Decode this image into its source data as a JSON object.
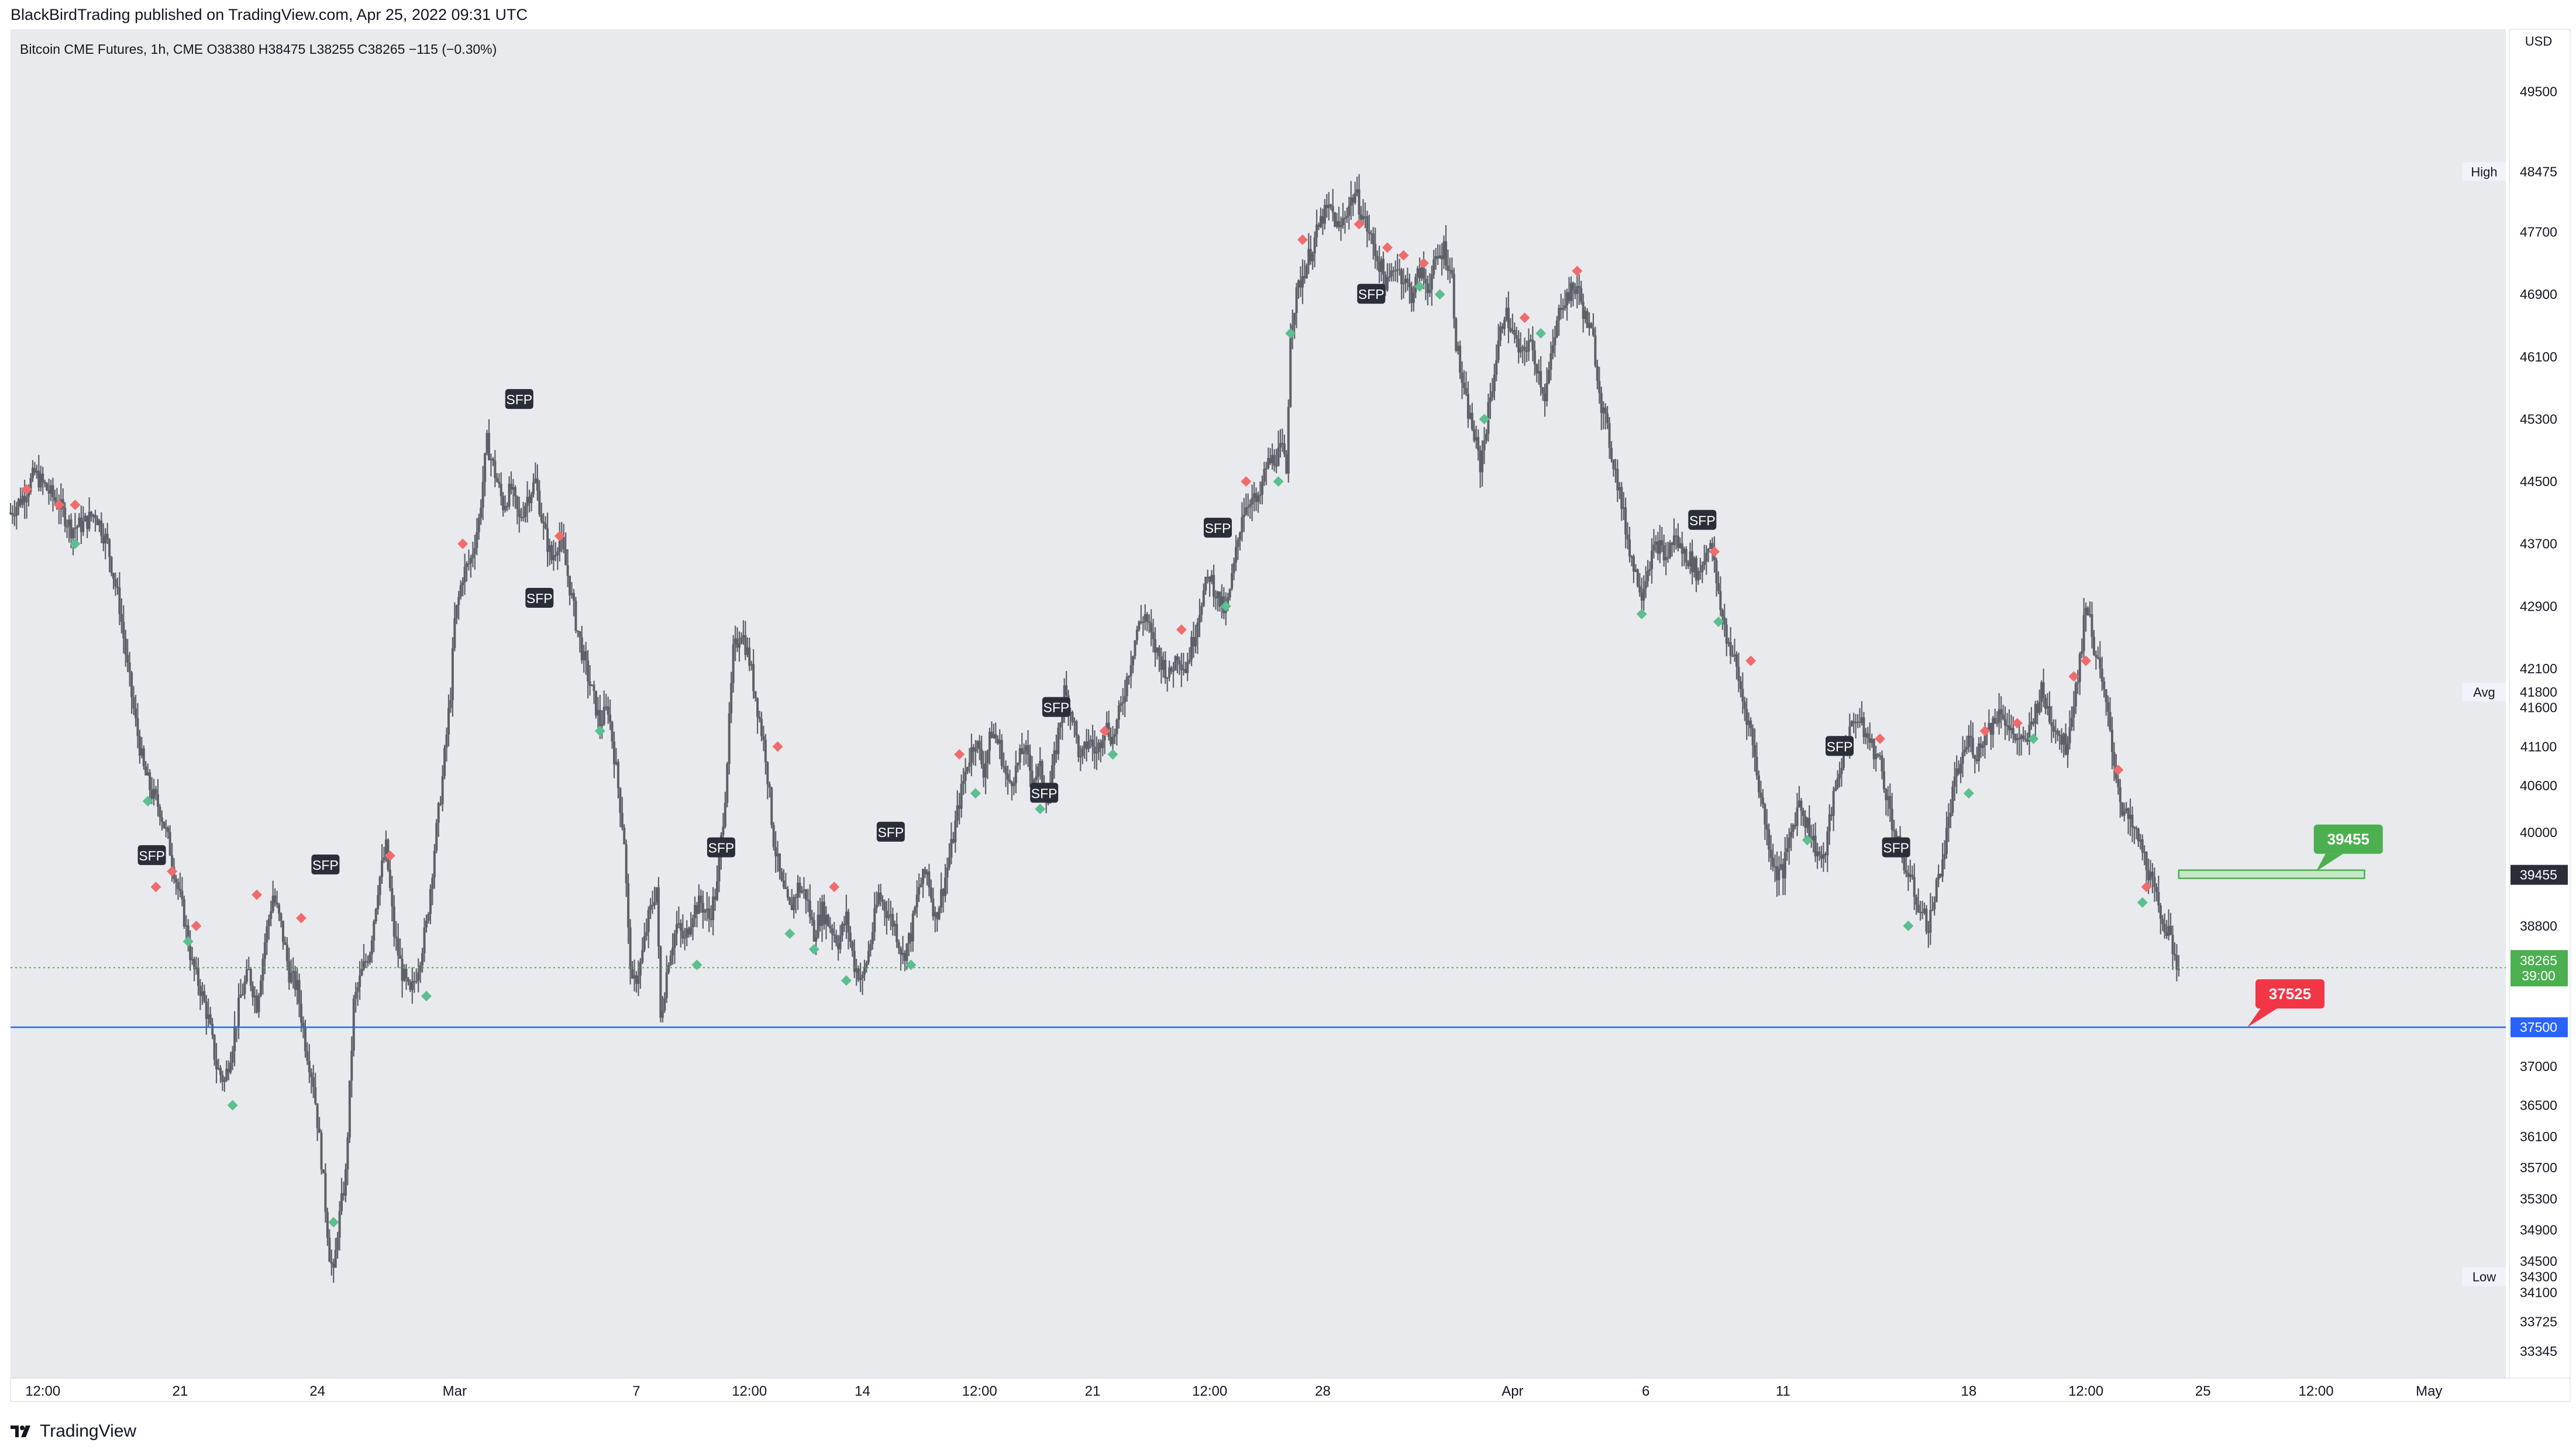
{
  "header": {
    "publisher": "BlackBirdTrading published on TradingView.com, Apr 25, 2022 09:31 UTC"
  },
  "footer": {
    "brand": "TradingView",
    "logo_icon": "tradingview-logo-icon"
  },
  "colors": {
    "chart_bg": "#e9eaee",
    "axis_bg": "#ffffff",
    "candle": "#5d6068",
    "sfp_label_bg": "#2a2e39",
    "sell_diamond": "#f06c6c",
    "buy_diamond": "#5bbf8f",
    "green_label": "#4caf50",
    "red_label": "#f23645",
    "blue_line": "#2962ff"
  },
  "chart_data": {
    "type": "candlestick",
    "legend": "Bitcoin CME Futures, 1h, CME  O38380  H38475  L38255  C38265  −115 (−0.30%)",
    "ohlc": {
      "open": 38380,
      "high": 38475,
      "low": 38255,
      "close": 38265,
      "change": -115,
      "change_pct": -0.3
    },
    "price_scale_unit": "USD",
    "y_ticks": [
      49500,
      48475,
      47700,
      46900,
      46100,
      45300,
      44500,
      43700,
      42900,
      42100,
      41800,
      41600,
      41100,
      40600,
      40000,
      39455,
      38800,
      37500,
      37000,
      36500,
      36100,
      35700,
      35300,
      34900,
      34500,
      34300,
      34100,
      33725,
      33345
    ],
    "ylim": [
      33000,
      50300
    ],
    "x_ticks": [
      "12:00",
      "21",
      "24",
      "Mar",
      "7",
      "12:00",
      "14",
      "12:00",
      "21",
      "12:00",
      "28",
      "Apr",
      "6",
      "11",
      "18",
      "12:00",
      "25",
      "12:00",
      "May"
    ],
    "x_tick_index": [
      8,
      42,
      76,
      110,
      155,
      183,
      211,
      240,
      268,
      297,
      325,
      372,
      405,
      439,
      485,
      514,
      543,
      571,
      599
    ],
    "x_range": [
      0,
      618
    ],
    "price_path": [
      [
        0,
        44100
      ],
      [
        3,
        44300
      ],
      [
        6,
        44600
      ],
      [
        9,
        44400
      ],
      [
        12,
        44200
      ],
      [
        15,
        43900
      ],
      [
        18,
        43950
      ],
      [
        21,
        44100
      ],
      [
        24,
        43700
      ],
      [
        27,
        42900
      ],
      [
        29,
        42100
      ],
      [
        31,
        41400
      ],
      [
        33,
        40800
      ],
      [
        35,
        40500
      ],
      [
        37,
        40300
      ],
      [
        39,
        39900
      ],
      [
        41,
        39400
      ],
      [
        43,
        38900
      ],
      [
        45,
        38300
      ],
      [
        47,
        38000
      ],
      [
        49,
        37600
      ],
      [
        51,
        37000
      ],
      [
        53,
        36800
      ],
      [
        55,
        37300
      ],
      [
        57,
        37900
      ],
      [
        59,
        38200
      ],
      [
        61,
        37800
      ],
      [
        63,
        38600
      ],
      [
        65,
        39200
      ],
      [
        67,
        38800
      ],
      [
        69,
        38200
      ],
      [
        71,
        38000
      ],
      [
        73,
        37300
      ],
      [
        75,
        36800
      ],
      [
        77,
        35800
      ],
      [
        78,
        35200
      ],
      [
        79,
        34600
      ],
      [
        80,
        34300
      ],
      [
        81,
        34900
      ],
      [
        83,
        35600
      ],
      [
        85,
        37800
      ],
      [
        87,
        38200
      ],
      [
        89,
        38500
      ],
      [
        91,
        39300
      ],
      [
        93,
        39800
      ],
      [
        95,
        38700
      ],
      [
        97,
        38200
      ],
      [
        99,
        37900
      ],
      [
        101,
        38300
      ],
      [
        103,
        38800
      ],
      [
        105,
        39800
      ],
      [
        107,
        40700
      ],
      [
        109,
        41800
      ],
      [
        110,
        42700
      ],
      [
        112,
        43300
      ],
      [
        114,
        43500
      ],
      [
        116,
        44000
      ],
      [
        118,
        45000
      ],
      [
        120,
        44600
      ],
      [
        122,
        44200
      ],
      [
        124,
        44400
      ],
      [
        126,
        44000
      ],
      [
        128,
        44300
      ],
      [
        130,
        44500
      ],
      [
        132,
        43900
      ],
      [
        134,
        43500
      ],
      [
        136,
        43800
      ],
      [
        138,
        43300
      ],
      [
        140,
        42700
      ],
      [
        142,
        42200
      ],
      [
        144,
        41800
      ],
      [
        146,
        41400
      ],
      [
        148,
        41600
      ],
      [
        150,
        40800
      ],
      [
        152,
        39900
      ],
      [
        153,
        38700
      ],
      [
        154,
        38000
      ],
      [
        156,
        38300
      ],
      [
        158,
        38900
      ],
      [
        160,
        39300
      ],
      [
        161,
        37600
      ],
      [
        163,
        38400
      ],
      [
        165,
        38800
      ],
      [
        167,
        38600
      ],
      [
        169,
        39000
      ],
      [
        171,
        39100
      ],
      [
        173,
        38900
      ],
      [
        175,
        39300
      ],
      [
        177,
        40500
      ],
      [
        179,
        42300
      ],
      [
        181,
        42600
      ],
      [
        183,
        42200
      ],
      [
        185,
        41600
      ],
      [
        187,
        41000
      ],
      [
        189,
        39900
      ],
      [
        191,
        39300
      ],
      [
        193,
        39000
      ],
      [
        195,
        39300
      ],
      [
        197,
        39200
      ],
      [
        199,
        38700
      ],
      [
        201,
        39000
      ],
      [
        203,
        38800
      ],
      [
        205,
        38600
      ],
      [
        207,
        38900
      ],
      [
        209,
        38300
      ],
      [
        211,
        38100
      ],
      [
        213,
        38600
      ],
      [
        215,
        39200
      ],
      [
        217,
        39000
      ],
      [
        219,
        38800
      ],
      [
        221,
        38400
      ],
      [
        223,
        38700
      ],
      [
        225,
        39300
      ],
      [
        227,
        39500
      ],
      [
        229,
        38900
      ],
      [
        231,
        39300
      ],
      [
        233,
        39800
      ],
      [
        235,
        40400
      ],
      [
        237,
        40900
      ],
      [
        239,
        41200
      ],
      [
        241,
        40800
      ],
      [
        243,
        41300
      ],
      [
        245,
        41100
      ],
      [
        247,
        40600
      ],
      [
        249,
        40800
      ],
      [
        251,
        41100
      ],
      [
        253,
        40700
      ],
      [
        255,
        40800
      ],
      [
        257,
        40400
      ],
      [
        259,
        41100
      ],
      [
        261,
        41800
      ],
      [
        263,
        41500
      ],
      [
        265,
        40900
      ],
      [
        267,
        41200
      ],
      [
        269,
        41000
      ],
      [
        271,
        41400
      ],
      [
        273,
        41200
      ],
      [
        275,
        41600
      ],
      [
        277,
        42100
      ],
      [
        279,
        42600
      ],
      [
        281,
        42800
      ],
      [
        283,
        42400
      ],
      [
        285,
        42200
      ],
      [
        287,
        42000
      ],
      [
        289,
        42300
      ],
      [
        291,
        42100
      ],
      [
        293,
        42500
      ],
      [
        295,
        43000
      ],
      [
        297,
        43300
      ],
      [
        299,
        43000
      ],
      [
        301,
        42800
      ],
      [
        303,
        43400
      ],
      [
        305,
        44100
      ],
      [
        307,
        44300
      ],
      [
        309,
        44200
      ],
      [
        311,
        44700
      ],
      [
        313,
        44800
      ],
      [
        315,
        44900
      ],
      [
        316,
        44600
      ],
      [
        317,
        46500
      ],
      [
        319,
        47000
      ],
      [
        321,
        47300
      ],
      [
        323,
        47600
      ],
      [
        325,
        47900
      ],
      [
        327,
        48000
      ],
      [
        329,
        47700
      ],
      [
        331,
        48000
      ],
      [
        333,
        48200
      ],
      [
        335,
        47900
      ],
      [
        337,
        47600
      ],
      [
        339,
        47300
      ],
      [
        341,
        47000
      ],
      [
        343,
        47300
      ],
      [
        345,
        47100
      ],
      [
        347,
        46900
      ],
      [
        349,
        47200
      ],
      [
        351,
        47000
      ],
      [
        353,
        47300
      ],
      [
        355,
        47500
      ],
      [
        357,
        47100
      ],
      [
        358,
        46300
      ],
      [
        360,
        45600
      ],
      [
        362,
        45200
      ],
      [
        364,
        44700
      ],
      [
        366,
        45400
      ],
      [
        368,
        46100
      ],
      [
        370,
        46700
      ],
      [
        372,
        46400
      ],
      [
        374,
        46100
      ],
      [
        376,
        46300
      ],
      [
        378,
        46000
      ],
      [
        380,
        45600
      ],
      [
        382,
        46200
      ],
      [
        384,
        46800
      ],
      [
        386,
        46900
      ],
      [
        388,
        47000
      ],
      [
        390,
        46600
      ],
      [
        392,
        46300
      ],
      [
        394,
        45500
      ],
      [
        396,
        45000
      ],
      [
        398,
        44500
      ],
      [
        400,
        43900
      ],
      [
        402,
        43400
      ],
      [
        404,
        43100
      ],
      [
        406,
        43500
      ],
      [
        408,
        43700
      ],
      [
        410,
        43500
      ],
      [
        412,
        43800
      ],
      [
        414,
        43600
      ],
      [
        416,
        43500
      ],
      [
        418,
        43300
      ],
      [
        420,
        43600
      ],
      [
        421,
        43800
      ],
      [
        423,
        43000
      ],
      [
        425,
        42500
      ],
      [
        427,
        42200
      ],
      [
        429,
        41700
      ],
      [
        431,
        41300
      ],
      [
        433,
        40600
      ],
      [
        435,
        40000
      ],
      [
        437,
        39500
      ],
      [
        439,
        39500
      ],
      [
        441,
        40000
      ],
      [
        443,
        40400
      ],
      [
        445,
        40100
      ],
      [
        447,
        39800
      ],
      [
        449,
        39600
      ],
      [
        451,
        40300
      ],
      [
        453,
        40800
      ],
      [
        455,
        41200
      ],
      [
        457,
        41500
      ],
      [
        459,
        41300
      ],
      [
        461,
        41100
      ],
      [
        463,
        40900
      ],
      [
        465,
        40400
      ],
      [
        467,
        39900
      ],
      [
        469,
        39600
      ],
      [
        471,
        39300
      ],
      [
        473,
        39000
      ],
      [
        475,
        38800
      ],
      [
        477,
        39300
      ],
      [
        479,
        39800
      ],
      [
        481,
        40500
      ],
      [
        483,
        40900
      ],
      [
        485,
        41200
      ],
      [
        487,
        41000
      ],
      [
        489,
        41300
      ],
      [
        491,
        41400
      ],
      [
        493,
        41600
      ],
      [
        495,
        41300
      ],
      [
        497,
        41200
      ],
      [
        499,
        41100
      ],
      [
        501,
        41500
      ],
      [
        503,
        41800
      ],
      [
        505,
        41500
      ],
      [
        507,
        41300
      ],
      [
        509,
        41100
      ],
      [
        511,
        41700
      ],
      [
        513,
        42400
      ],
      [
        514,
        43000
      ],
      [
        516,
        42400
      ],
      [
        518,
        41900
      ],
      [
        520,
        41300
      ],
      [
        521,
        40900
      ],
      [
        523,
        40300
      ],
      [
        525,
        40100
      ],
      [
        527,
        39900
      ],
      [
        529,
        39600
      ],
      [
        531,
        39200
      ],
      [
        533,
        38900
      ],
      [
        535,
        38600
      ],
      [
        537,
        38265
      ]
    ],
    "sfp_labels": [
      {
        "text": "SFP",
        "i": 35,
        "price": 39700
      },
      {
        "text": "SFP",
        "i": 78,
        "price": 39580
      },
      {
        "text": "SFP",
        "i": 126,
        "price": 45550
      },
      {
        "text": "SFP",
        "i": 131,
        "price": 43000
      },
      {
        "text": "SFP",
        "i": 176,
        "price": 39800
      },
      {
        "text": "SFP",
        "i": 218,
        "price": 40000
      },
      {
        "text": "SFP",
        "i": 259,
        "price": 41600
      },
      {
        "text": "SFP",
        "i": 256,
        "price": 40500
      },
      {
        "text": "SFP",
        "i": 299,
        "price": 43900
      },
      {
        "text": "SFP",
        "i": 337,
        "price": 46900
      },
      {
        "text": "SFP",
        "i": 419,
        "price": 44000
      },
      {
        "text": "SFP",
        "i": 453,
        "price": 41100
      },
      {
        "text": "SFP",
        "i": 467,
        "price": 39800
      }
    ],
    "sell_signals": [
      [
        4,
        44400
      ],
      [
        12,
        44200
      ],
      [
        16,
        44200
      ],
      [
        36,
        39300
      ],
      [
        40,
        39500
      ],
      [
        46,
        38800
      ],
      [
        61,
        39200
      ],
      [
        72,
        38900
      ],
      [
        94,
        39700
      ],
      [
        112,
        43700
      ],
      [
        136,
        43800
      ],
      [
        190,
        41100
      ],
      [
        204,
        39300
      ],
      [
        235,
        41000
      ],
      [
        271,
        41300
      ],
      [
        290,
        42600
      ],
      [
        306,
        44500
      ],
      [
        320,
        47600
      ],
      [
        334,
        47800
      ],
      [
        341,
        47500
      ],
      [
        345,
        47400
      ],
      [
        350,
        47300
      ],
      [
        375,
        46600
      ],
      [
        388,
        47200
      ],
      [
        422,
        43600
      ],
      [
        431,
        42200
      ],
      [
        463,
        41200
      ],
      [
        489,
        41300
      ],
      [
        497,
        41400
      ],
      [
        511,
        42000
      ],
      [
        514,
        42200
      ],
      [
        522,
        40800
      ],
      [
        529,
        39300
      ]
    ],
    "buy_signals": [
      [
        16,
        43700
      ],
      [
        34,
        40400
      ],
      [
        44,
        38600
      ],
      [
        55,
        36500
      ],
      [
        80,
        35000
      ],
      [
        103,
        37900
      ],
      [
        146,
        41300
      ],
      [
        170,
        38300
      ],
      [
        193,
        38700
      ],
      [
        199,
        38500
      ],
      [
        207,
        38100
      ],
      [
        223,
        38300
      ],
      [
        239,
        40500
      ],
      [
        255,
        40300
      ],
      [
        273,
        41000
      ],
      [
        301,
        42900
      ],
      [
        314,
        44500
      ],
      [
        317,
        46400
      ],
      [
        349,
        47000
      ],
      [
        354,
        46900
      ],
      [
        365,
        45300
      ],
      [
        379,
        46400
      ],
      [
        404,
        42800
      ],
      [
        423,
        42700
      ],
      [
        445,
        39900
      ],
      [
        470,
        38800
      ],
      [
        485,
        40500
      ],
      [
        501,
        41200
      ],
      [
        528,
        39100
      ]
    ],
    "levels": {
      "green_zone": {
        "price": 39455,
        "label": "39455"
      },
      "blue_line": {
        "price": 37500,
        "label": "37500"
      },
      "red_target": {
        "label": "37525"
      },
      "current_price": {
        "price": 38265,
        "label": "38265",
        "countdown": "39:00"
      }
    },
    "side_labels": [
      {
        "text": "High",
        "price": 48475
      },
      {
        "text": "Avg",
        "price": 41800
      },
      {
        "text": "Low",
        "price": 34300
      }
    ]
  }
}
